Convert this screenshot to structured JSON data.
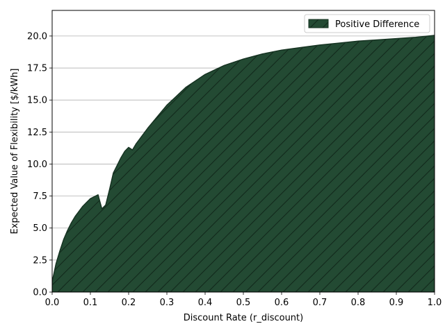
{
  "chart_data": {
    "type": "area",
    "title": "",
    "xlabel": "Discount Rate (r_discount)",
    "ylabel": "Expected Value of Flexibility [$/kWh]",
    "xlim": [
      0,
      1
    ],
    "ylim": [
      0,
      22
    ],
    "x_ticks": [
      0.0,
      0.1,
      0.2,
      0.3,
      0.4,
      0.5,
      0.6,
      0.7,
      0.8,
      0.9,
      1.0
    ],
    "x_tick_labels": [
      "0.0",
      "0.1",
      "0.2",
      "0.3",
      "0.4",
      "0.5",
      "0.6",
      "0.7",
      "0.8",
      "0.9",
      "1.0"
    ],
    "y_ticks": [
      0.0,
      2.5,
      5.0,
      7.5,
      10.0,
      12.5,
      15.0,
      17.5,
      20.0
    ],
    "y_tick_labels": [
      "0.0",
      "2.5",
      "5.0",
      "7.5",
      "10.0",
      "12.5",
      "15.0",
      "17.5",
      "20.0"
    ],
    "grid": "y",
    "legend_position": "top-right",
    "fill_color": "#234a33",
    "edge_color": "#163322",
    "hatch_color": "#11271a",
    "series": [
      {
        "name": "Positive Difference",
        "x": [
          0.0,
          0.01,
          0.02,
          0.03,
          0.04,
          0.05,
          0.06,
          0.07,
          0.08,
          0.09,
          0.1,
          0.11,
          0.12,
          0.13,
          0.14,
          0.15,
          0.16,
          0.17,
          0.18,
          0.19,
          0.2,
          0.21,
          0.22,
          0.25,
          0.3,
          0.35,
          0.4,
          0.45,
          0.5,
          0.55,
          0.6,
          0.65,
          0.7,
          0.75,
          0.8,
          0.85,
          0.9,
          0.95,
          1.0
        ],
        "y": [
          0.8,
          2.2,
          3.2,
          4.1,
          4.8,
          5.4,
          5.9,
          6.3,
          6.7,
          7.0,
          7.3,
          7.45,
          7.6,
          6.5,
          6.8,
          8.0,
          9.3,
          9.9,
          10.5,
          11.0,
          11.3,
          11.1,
          11.6,
          12.8,
          14.6,
          16.0,
          17.0,
          17.7,
          18.2,
          18.6,
          18.9,
          19.1,
          19.3,
          19.45,
          19.6,
          19.7,
          19.8,
          19.9,
          20.05
        ]
      }
    ]
  }
}
